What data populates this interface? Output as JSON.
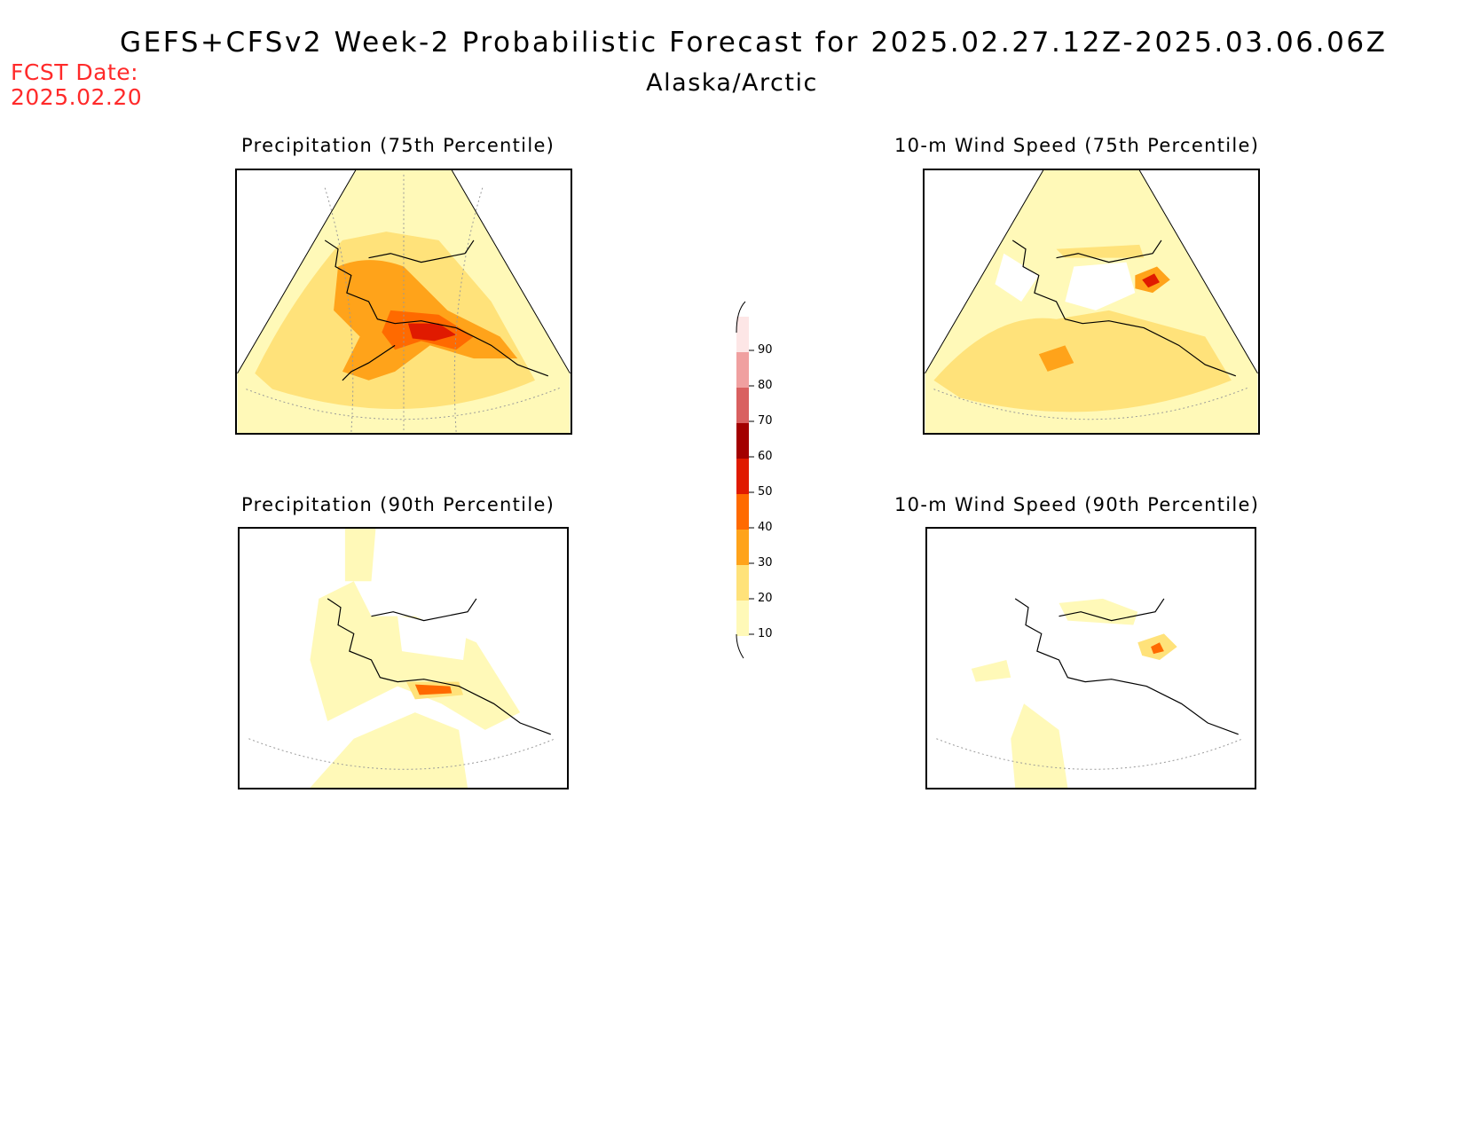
{
  "title": "GEFS+CFSv2 Week-2 Probabilistic Forecast for 2025.02.27.12Z-2025.03.06.06Z",
  "subtitle": "Alaska/Arctic",
  "fcst_label": "FCST Date:",
  "fcst_date": "2025.02.20",
  "panels": [
    {
      "title": "Precipitation (75th Percentile)"
    },
    {
      "title": "10-m Wind Speed (75th Percentile)"
    },
    {
      "title": "Precipitation (90th Percentile)"
    },
    {
      "title": "10-m Wind Speed (90th Percentile)"
    }
  ],
  "colorbar": {
    "levels": [
      "10",
      "20",
      "30",
      "40",
      "50",
      "60",
      "70",
      "80",
      "90"
    ],
    "colors": [
      "#fff9b8",
      "#ffe27a",
      "#ffa31a",
      "#ff6a00",
      "#e01a00",
      "#a30000",
      "#d96060",
      "#f0a0a0",
      "#fde6e6"
    ]
  }
}
